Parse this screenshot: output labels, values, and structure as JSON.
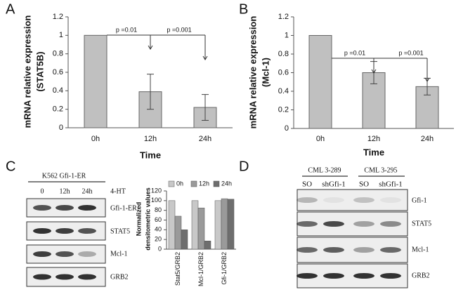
{
  "chart_data": [
    {
      "type": "bar",
      "categories": [
        "0h",
        "12h",
        "24h"
      ],
      "values": [
        1,
        0.39,
        0.22
      ],
      "errors": [
        null,
        0.19,
        0.14
      ],
      "color": "#c0c0c0",
      "ylim": [
        0,
        1.2
      ],
      "yticks": [
        0,
        0.2,
        0.4,
        0.6,
        0.8,
        1,
        1.2
      ],
      "ylabel": [
        "mRNA relative expression",
        "(STAT5B)"
      ],
      "xlabel": "Time",
      "annotations": [
        "p =0.01",
        "p =0.001"
      ]
    },
    {
      "type": "bar",
      "categories": [
        "0h",
        "12h",
        "24h"
      ],
      "values": [
        1,
        0.6,
        0.45
      ],
      "errors": [
        null,
        0.12,
        0.09
      ],
      "color": "#c0c0c0",
      "ylim": [
        0,
        1.2
      ],
      "yticks": [
        0,
        0.2,
        0.4,
        0.6,
        0.8,
        1,
        1.2
      ],
      "ylabel": [
        "mRNA relative expression",
        "(Mcl-1)"
      ],
      "xlabel": "Time",
      "annotations": [
        "p =0.01",
        "p =0.001"
      ]
    },
    {
      "type": "bar",
      "categories": [
        "Stat5/GRB2",
        "Mcl-1/GRB2",
        "Gfi-1/GRB2"
      ],
      "series": [
        {
          "name": "0h",
          "color": "#c8c8c8",
          "values": [
            100,
            100,
            100
          ]
        },
        {
          "name": "12h",
          "color": "#9a9a9a",
          "values": [
            68,
            85,
            104
          ]
        },
        {
          "name": "24h",
          "color": "#6e6e6e",
          "values": [
            40,
            17,
            103
          ]
        }
      ],
      "ylim": [
        0,
        120
      ],
      "yticks": [
        0,
        20,
        40,
        60,
        80,
        100,
        120
      ],
      "ylabel": [
        "Normalized",
        "densitometric values"
      ]
    }
  ],
  "panel_labels": [
    "A",
    "B",
    "C",
    "D"
  ],
  "blot_c": {
    "title": "K562 Gfi-1-ER",
    "lanes": [
      "0",
      "12h",
      "24h"
    ],
    "treatment": "4-HT",
    "proteins": [
      "Gfi-1-ER",
      "STAT5",
      "Mcl-1",
      "GRB2"
    ]
  },
  "blot_d": {
    "groups": [
      "CML 3-289",
      "CML 3-295"
    ],
    "lanes": [
      "SO",
      "shGfi-1",
      "SO",
      "shGfi-1"
    ],
    "proteins": [
      "Gfi-1",
      "STAT5",
      "Mcl-1",
      "GRB2"
    ]
  }
}
